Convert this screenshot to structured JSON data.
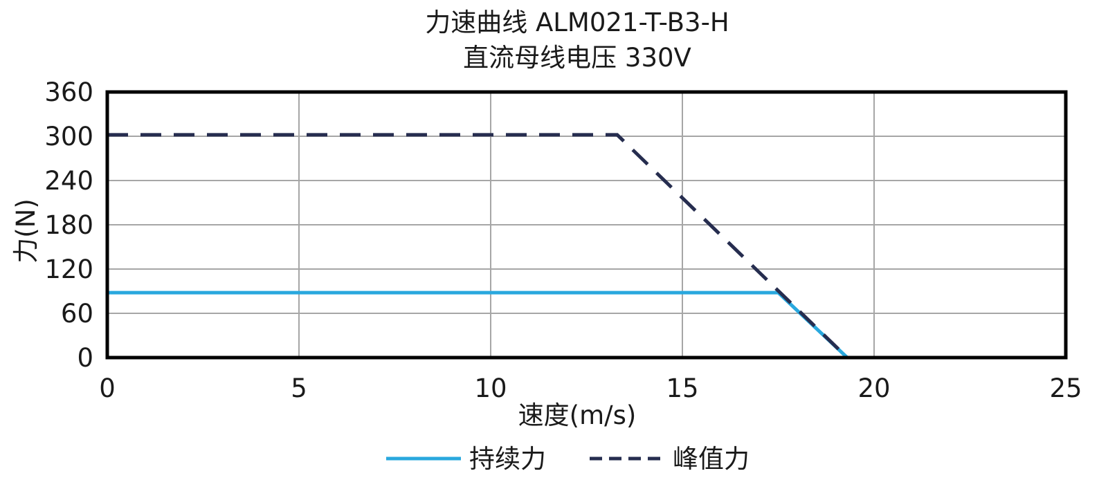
{
  "chart_data": {
    "type": "line",
    "title": "力速曲线 ALM021-T-B3-H",
    "subtitle": "直流母线电压 330V",
    "xlabel": "速度(m/s)",
    "ylabel": "力(N)",
    "xlim": [
      0,
      25
    ],
    "ylim": [
      0,
      360
    ],
    "xticks": [
      "0",
      "5",
      "10",
      "15",
      "20",
      "25"
    ],
    "yticks": [
      "0",
      "60",
      "120",
      "180",
      "240",
      "300",
      "360"
    ],
    "grid": true,
    "legend_position": "bottom-center",
    "series": [
      {
        "name": "持续力",
        "color": "#29a8de",
        "style": "solid",
        "x": [
          0,
          17.5,
          19.3
        ],
        "y": [
          88,
          88,
          0
        ]
      },
      {
        "name": "峰值力",
        "color": "#262d4f",
        "style": "dashed",
        "x": [
          0,
          13.3,
          19.3
        ],
        "y": [
          302,
          302,
          0
        ]
      }
    ]
  }
}
